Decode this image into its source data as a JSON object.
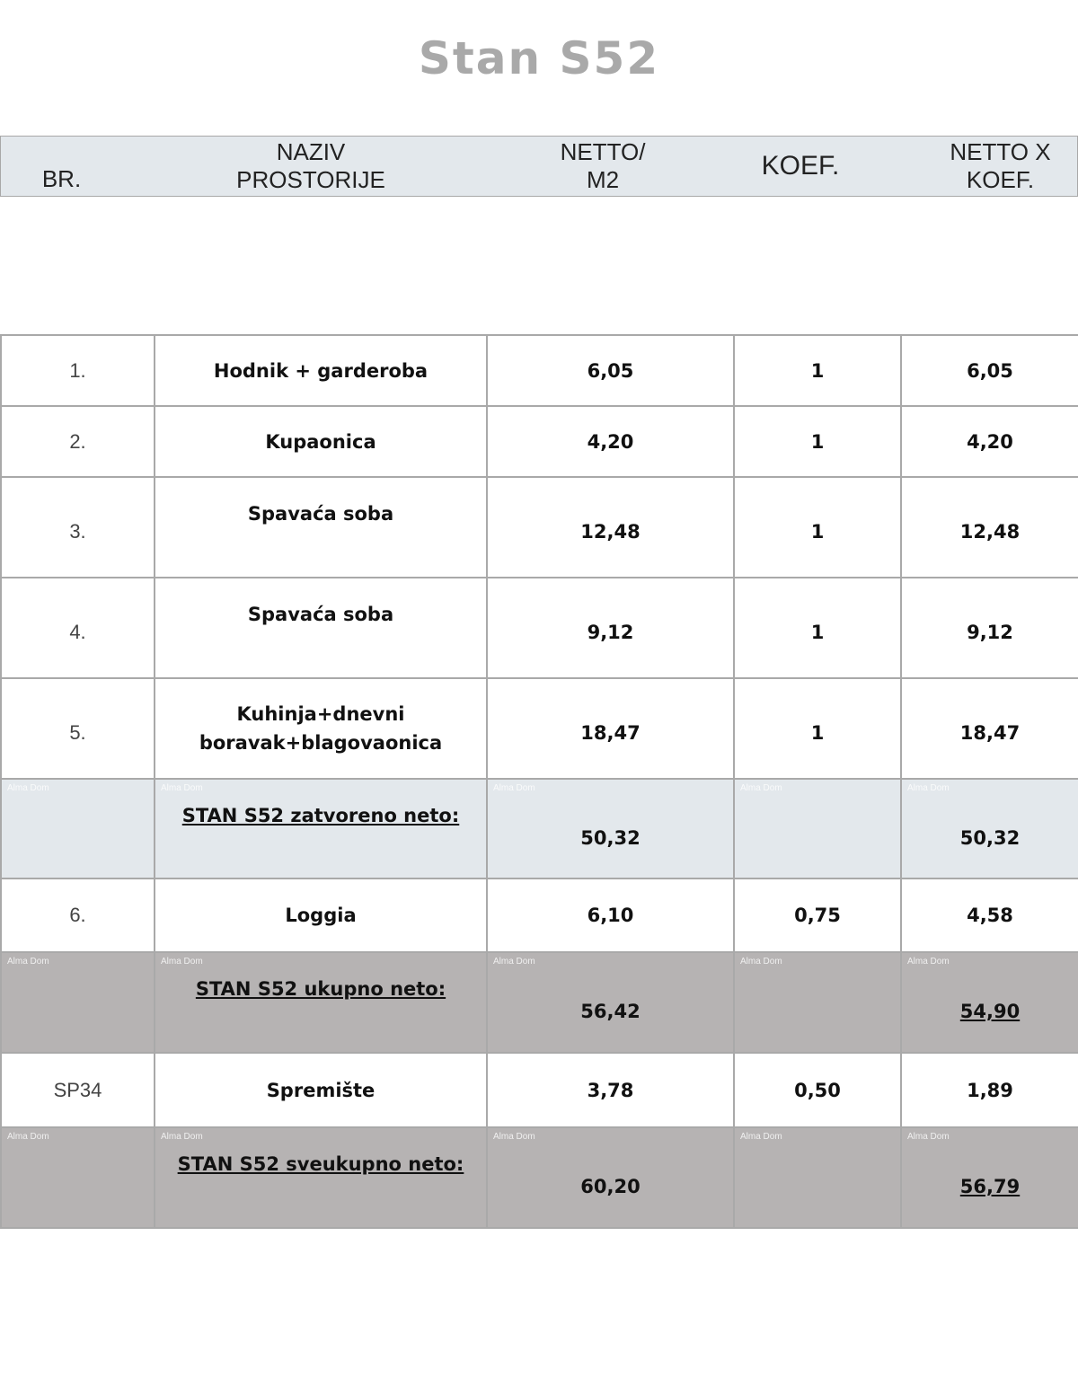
{
  "title": "Stan S52",
  "header": {
    "br": "BR.",
    "naziv": [
      "NAZIV",
      "PROSTORIJE"
    ],
    "netto": [
      "NETTO/",
      "M2"
    ],
    "koef": "KOEF.",
    "netto_koef": [
      "NETTO X",
      "KOEF."
    ]
  },
  "watermark": "Alma Dom",
  "rows": [
    {
      "br": "1.",
      "naziv": "Hodnik + garderoba",
      "netto": "6,05",
      "koef": "1",
      "netto_koef": "6,05"
    },
    {
      "br": "2.",
      "naziv": "Kupaonica",
      "netto": "4,20",
      "koef": "1",
      "netto_koef": "4,20"
    },
    {
      "br": "3.",
      "naziv": "Spavaća soba",
      "netto": "12,48",
      "koef": "1",
      "netto_koef": "12,48"
    },
    {
      "br": "4.",
      "naziv": "Spavaća soba",
      "netto": "9,12",
      "koef": "1",
      "netto_koef": "9,12"
    },
    {
      "br": "5.",
      "naziv": "Kuhinja+dnevni boravak+blagovaonica",
      "netto": "18,47",
      "koef": "1",
      "netto_koef": "18,47"
    },
    {
      "br": "",
      "naziv": "STAN S52 zatvoreno neto:",
      "netto": "50,32",
      "koef": "",
      "netto_koef": "50,32"
    },
    {
      "br": "6.",
      "naziv": "Loggia",
      "netto": "6,10",
      "koef": "0,75",
      "netto_koef": "4,58"
    },
    {
      "br": "",
      "naziv": "STAN S52 ukupno neto:",
      "netto": "56,42",
      "koef": "",
      "netto_koef": "54,90"
    },
    {
      "br": "SP34",
      "naziv": "Spremište",
      "netto": "3,78",
      "koef": "0,50",
      "netto_koef": "1,89"
    },
    {
      "br": "",
      "naziv": "STAN S52 sveukupno neto:",
      "netto": "60,20",
      "koef": "",
      "netto_koef": "56,79"
    }
  ]
}
